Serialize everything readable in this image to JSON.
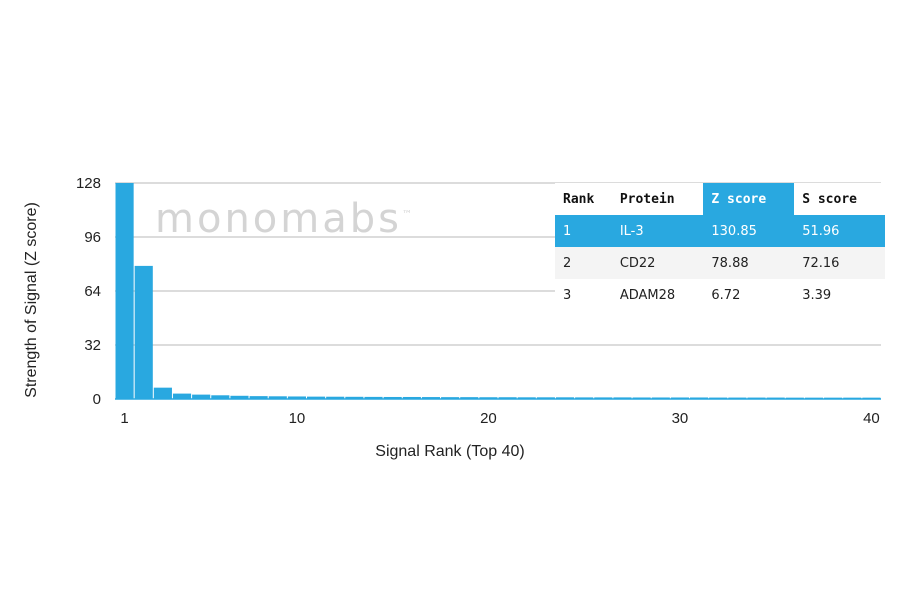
{
  "watermark": {
    "text": "monomabs",
    "mark": "™"
  },
  "colors": {
    "bar": "#29a8e0",
    "grid": "#b9b9b9",
    "highlight": "#29a8e0"
  },
  "chart_data": {
    "type": "bar",
    "xlabel": "Signal Rank (Top 40)",
    "ylabel": "Strength of Signal (Z score)",
    "ylim": [
      0,
      128
    ],
    "yticks": [
      0,
      32,
      64,
      96,
      128
    ],
    "xticks": [
      1,
      10,
      20,
      30,
      40
    ],
    "grid": true,
    "categories": [
      1,
      2,
      3,
      4,
      5,
      6,
      7,
      8,
      9,
      10,
      11,
      12,
      13,
      14,
      15,
      16,
      17,
      18,
      19,
      20,
      21,
      22,
      23,
      24,
      25,
      26,
      27,
      28,
      29,
      30,
      31,
      32,
      33,
      34,
      35,
      36,
      37,
      38,
      39,
      40
    ],
    "values": [
      130.85,
      78.88,
      6.72,
      3.2,
      2.6,
      2.2,
      1.9,
      1.7,
      1.6,
      1.5,
      1.4,
      1.35,
      1.3,
      1.25,
      1.2,
      1.2,
      1.15,
      1.1,
      1.1,
      1.05,
      1.05,
      1.0,
      1.0,
      1.0,
      0.95,
      0.95,
      0.95,
      0.9,
      0.9,
      0.9,
      0.9,
      0.85,
      0.85,
      0.85,
      0.85,
      0.8,
      0.8,
      0.8,
      0.8,
      0.8
    ]
  },
  "table": {
    "headers": [
      "Rank",
      "Protein",
      "Z score",
      "S score"
    ],
    "highlight_header_index": 2,
    "rows": [
      [
        "1",
        "IL-3",
        "130.85",
        "51.96"
      ],
      [
        "2",
        "CD22",
        "78.88",
        "72.16"
      ],
      [
        "3",
        "ADAM28",
        "6.72",
        "3.39"
      ]
    ]
  }
}
